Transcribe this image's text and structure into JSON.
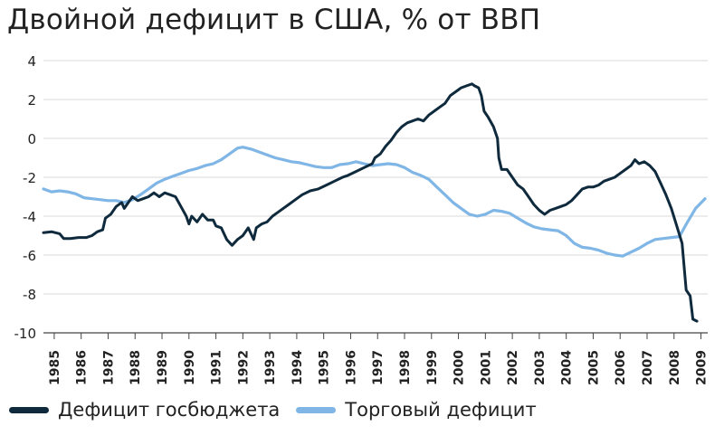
{
  "colors": {
    "budget": "#0f2a3c",
    "trade": "#7fb6e6",
    "grid": "#d9d9d9",
    "axis": "#444444"
  },
  "chart_data": {
    "type": "line",
    "title": "Двойной дефицит в США, % от ВВП",
    "xlabel": "",
    "ylabel": "",
    "xlim": [
      1984.6,
      2009.25
    ],
    "ylim": [
      -10,
      4
    ],
    "yticks": [
      4,
      2,
      0,
      -2,
      -4,
      -6,
      -8,
      -10
    ],
    "xticks": [
      1985,
      1986,
      1987,
      1988,
      1989,
      1990,
      1991,
      1992,
      1993,
      1994,
      1995,
      1996,
      1997,
      1998,
      1999,
      2000,
      2001,
      2002,
      2003,
      2004,
      2005,
      2006,
      2007,
      2008,
      2009
    ],
    "grid": "horizontal",
    "legend_position": "bottom",
    "series": [
      {
        "name": "Дефицит госбюджета",
        "color": "#0f2a3c",
        "points": [
          [
            1984.6,
            -4.85
          ],
          [
            1984.9,
            -4.8
          ],
          [
            1985.2,
            -4.9
          ],
          [
            1985.35,
            -5.15
          ],
          [
            1985.6,
            -5.15
          ],
          [
            1985.9,
            -5.1
          ],
          [
            1986.2,
            -5.1
          ],
          [
            1986.4,
            -5.0
          ],
          [
            1986.6,
            -4.8
          ],
          [
            1986.8,
            -4.7
          ],
          [
            1986.9,
            -4.1
          ],
          [
            1987.1,
            -3.9
          ],
          [
            1987.3,
            -3.5
          ],
          [
            1987.5,
            -3.3
          ],
          [
            1987.6,
            -3.6
          ],
          [
            1987.75,
            -3.3
          ],
          [
            1987.9,
            -3.0
          ],
          [
            1988.1,
            -3.2
          ],
          [
            1988.3,
            -3.1
          ],
          [
            1988.5,
            -3.0
          ],
          [
            1988.7,
            -2.8
          ],
          [
            1988.9,
            -3.0
          ],
          [
            1989.1,
            -2.8
          ],
          [
            1989.3,
            -2.9
          ],
          [
            1989.5,
            -3.0
          ],
          [
            1989.7,
            -3.5
          ],
          [
            1989.9,
            -4.0
          ],
          [
            1990.0,
            -4.4
          ],
          [
            1990.1,
            -4.0
          ],
          [
            1990.3,
            -4.3
          ],
          [
            1990.5,
            -3.9
          ],
          [
            1990.7,
            -4.2
          ],
          [
            1990.9,
            -4.2
          ],
          [
            1991.0,
            -4.5
          ],
          [
            1991.2,
            -4.6
          ],
          [
            1991.4,
            -5.2
          ],
          [
            1991.6,
            -5.5
          ],
          [
            1991.8,
            -5.2
          ],
          [
            1992.0,
            -5.0
          ],
          [
            1992.2,
            -4.6
          ],
          [
            1992.4,
            -5.2
          ],
          [
            1992.5,
            -4.6
          ],
          [
            1992.7,
            -4.4
          ],
          [
            1992.9,
            -4.3
          ],
          [
            1993.1,
            -4.0
          ],
          [
            1993.3,
            -3.8
          ],
          [
            1993.5,
            -3.6
          ],
          [
            1993.7,
            -3.4
          ],
          [
            1993.9,
            -3.2
          ],
          [
            1994.2,
            -2.9
          ],
          [
            1994.5,
            -2.7
          ],
          [
            1994.8,
            -2.6
          ],
          [
            1995.1,
            -2.4
          ],
          [
            1995.4,
            -2.2
          ],
          [
            1995.7,
            -2.0
          ],
          [
            1995.9,
            -1.9
          ],
          [
            1996.2,
            -1.7
          ],
          [
            1996.5,
            -1.5
          ],
          [
            1996.8,
            -1.3
          ],
          [
            1996.9,
            -1.0
          ],
          [
            1997.1,
            -0.8
          ],
          [
            1997.3,
            -0.4
          ],
          [
            1997.5,
            -0.1
          ],
          [
            1997.7,
            0.3
          ],
          [
            1997.9,
            0.6
          ],
          [
            1998.1,
            0.8
          ],
          [
            1998.3,
            0.9
          ],
          [
            1998.5,
            1.0
          ],
          [
            1998.7,
            0.9
          ],
          [
            1998.9,
            1.2
          ],
          [
            1999.1,
            1.4
          ],
          [
            1999.3,
            1.6
          ],
          [
            1999.5,
            1.8
          ],
          [
            1999.7,
            2.2
          ],
          [
            1999.9,
            2.4
          ],
          [
            2000.1,
            2.6
          ],
          [
            2000.3,
            2.7
          ],
          [
            2000.5,
            2.8
          ],
          [
            2000.6,
            2.7
          ],
          [
            2000.75,
            2.6
          ],
          [
            2000.85,
            2.2
          ],
          [
            2000.95,
            1.4
          ],
          [
            2001.1,
            1.1
          ],
          [
            2001.3,
            0.6
          ],
          [
            2001.45,
            0.0
          ],
          [
            2001.5,
            -1.0
          ],
          [
            2001.6,
            -1.6
          ],
          [
            2001.8,
            -1.6
          ],
          [
            2002.0,
            -2.0
          ],
          [
            2002.2,
            -2.4
          ],
          [
            2002.4,
            -2.6
          ],
          [
            2002.6,
            -3.0
          ],
          [
            2002.8,
            -3.4
          ],
          [
            2003.0,
            -3.7
          ],
          [
            2003.2,
            -3.9
          ],
          [
            2003.4,
            -3.7
          ],
          [
            2003.6,
            -3.6
          ],
          [
            2003.8,
            -3.5
          ],
          [
            2004.0,
            -3.4
          ],
          [
            2004.2,
            -3.2
          ],
          [
            2004.4,
            -2.9
          ],
          [
            2004.6,
            -2.6
          ],
          [
            2004.8,
            -2.5
          ],
          [
            2005.0,
            -2.5
          ],
          [
            2005.2,
            -2.4
          ],
          [
            2005.4,
            -2.2
          ],
          [
            2005.6,
            -2.1
          ],
          [
            2005.8,
            -2.0
          ],
          [
            2006.0,
            -1.8
          ],
          [
            2006.2,
            -1.6
          ],
          [
            2006.4,
            -1.4
          ],
          [
            2006.55,
            -1.1
          ],
          [
            2006.7,
            -1.3
          ],
          [
            2006.9,
            -1.2
          ],
          [
            2007.1,
            -1.4
          ],
          [
            2007.3,
            -1.7
          ],
          [
            2007.5,
            -2.3
          ],
          [
            2007.7,
            -2.9
          ],
          [
            2007.9,
            -3.6
          ],
          [
            2008.1,
            -4.5
          ],
          [
            2008.3,
            -5.4
          ],
          [
            2008.45,
            -7.8
          ],
          [
            2008.6,
            -8.1
          ],
          [
            2008.7,
            -9.3
          ],
          [
            2008.85,
            -9.4
          ]
        ]
      },
      {
        "name": "Торговый дефицит",
        "color": "#7fb6e6",
        "points": [
          [
            1984.6,
            -2.6
          ],
          [
            1984.9,
            -2.75
          ],
          [
            1985.2,
            -2.7
          ],
          [
            1985.5,
            -2.75
          ],
          [
            1985.8,
            -2.85
          ],
          [
            1986.1,
            -3.05
          ],
          [
            1986.4,
            -3.1
          ],
          [
            1986.7,
            -3.15
          ],
          [
            1987.0,
            -3.2
          ],
          [
            1987.3,
            -3.2
          ],
          [
            1987.6,
            -3.3
          ],
          [
            1987.9,
            -3.15
          ],
          [
            1988.2,
            -2.9
          ],
          [
            1988.5,
            -2.6
          ],
          [
            1988.8,
            -2.3
          ],
          [
            1989.1,
            -2.1
          ],
          [
            1989.4,
            -1.95
          ],
          [
            1989.7,
            -1.8
          ],
          [
            1990.0,
            -1.65
          ],
          [
            1990.3,
            -1.55
          ],
          [
            1990.6,
            -1.4
          ],
          [
            1990.9,
            -1.3
          ],
          [
            1991.2,
            -1.1
          ],
          [
            1991.5,
            -0.8
          ],
          [
            1991.8,
            -0.5
          ],
          [
            1992.0,
            -0.45
          ],
          [
            1992.3,
            -0.55
          ],
          [
            1992.6,
            -0.7
          ],
          [
            1992.9,
            -0.85
          ],
          [
            1993.2,
            -1.0
          ],
          [
            1993.5,
            -1.1
          ],
          [
            1993.8,
            -1.2
          ],
          [
            1994.1,
            -1.25
          ],
          [
            1994.4,
            -1.35
          ],
          [
            1994.7,
            -1.45
          ],
          [
            1995.0,
            -1.5
          ],
          [
            1995.3,
            -1.5
          ],
          [
            1995.6,
            -1.35
          ],
          [
            1995.9,
            -1.3
          ],
          [
            1996.2,
            -1.2
          ],
          [
            1996.5,
            -1.3
          ],
          [
            1996.8,
            -1.4
          ],
          [
            1997.1,
            -1.35
          ],
          [
            1997.4,
            -1.3
          ],
          [
            1997.7,
            -1.35
          ],
          [
            1998.0,
            -1.5
          ],
          [
            1998.3,
            -1.75
          ],
          [
            1998.6,
            -1.9
          ],
          [
            1998.9,
            -2.1
          ],
          [
            1999.2,
            -2.5
          ],
          [
            1999.5,
            -2.9
          ],
          [
            1999.8,
            -3.3
          ],
          [
            2000.1,
            -3.6
          ],
          [
            2000.4,
            -3.9
          ],
          [
            2000.7,
            -4.0
          ],
          [
            2001.0,
            -3.9
          ],
          [
            2001.3,
            -3.7
          ],
          [
            2001.6,
            -3.75
          ],
          [
            2001.9,
            -3.85
          ],
          [
            2002.2,
            -4.1
          ],
          [
            2002.5,
            -4.35
          ],
          [
            2002.8,
            -4.55
          ],
          [
            2003.1,
            -4.65
          ],
          [
            2003.4,
            -4.7
          ],
          [
            2003.7,
            -4.75
          ],
          [
            2004.0,
            -5.0
          ],
          [
            2004.3,
            -5.4
          ],
          [
            2004.6,
            -5.6
          ],
          [
            2004.9,
            -5.65
          ],
          [
            2005.2,
            -5.75
          ],
          [
            2005.5,
            -5.9
          ],
          [
            2005.8,
            -6.0
          ],
          [
            2006.1,
            -6.05
          ],
          [
            2006.4,
            -5.85
          ],
          [
            2006.7,
            -5.65
          ],
          [
            2007.0,
            -5.4
          ],
          [
            2007.3,
            -5.2
          ],
          [
            2007.6,
            -5.15
          ],
          [
            2007.9,
            -5.1
          ],
          [
            2008.2,
            -5.05
          ],
          [
            2008.5,
            -4.3
          ],
          [
            2008.8,
            -3.6
          ],
          [
            2009.15,
            -3.1
          ]
        ]
      }
    ]
  }
}
